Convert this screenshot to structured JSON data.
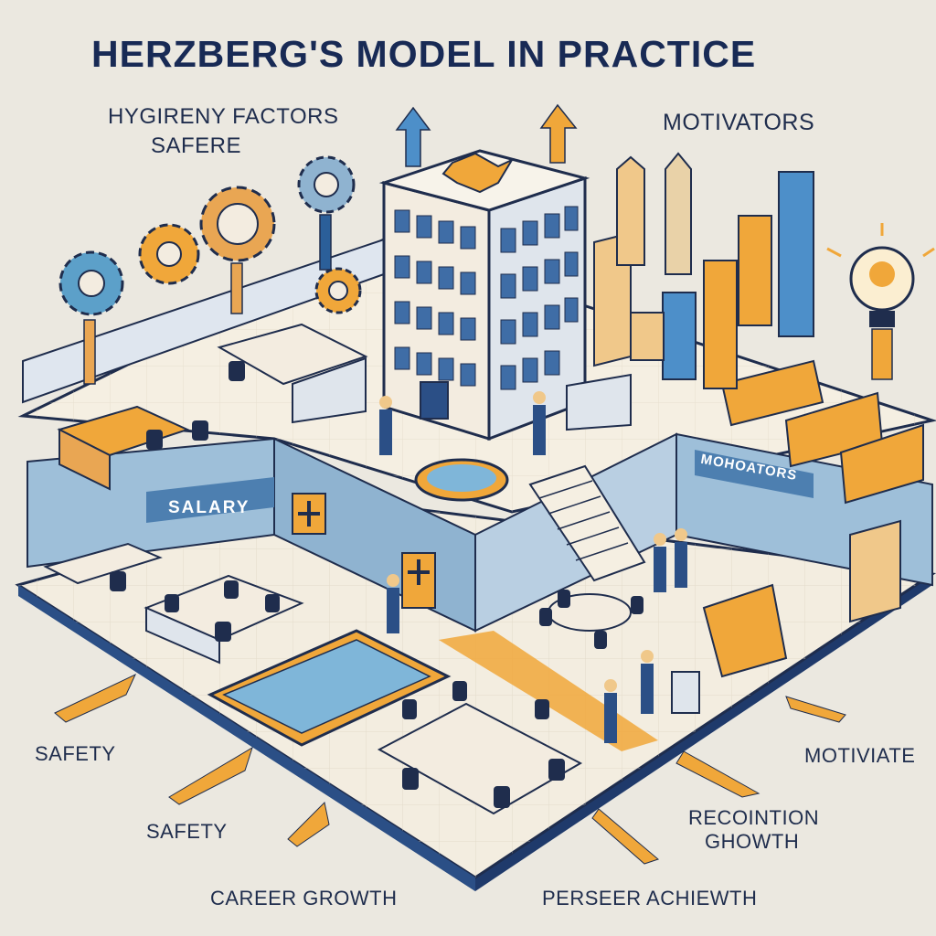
{
  "title": "HERZBERG'S MODEL IN PRACTICE",
  "labels": {
    "hygiene_factors": "HYGIRENY FACTORS",
    "safer": "SAFERE",
    "motivators": "MOTIVATORS",
    "safety_left": "SAFETY",
    "safety_bottom": "SAFETY",
    "career_growth": "CAREER GROWTH",
    "perseer": "PERSEER ACHIEWTH",
    "recognition": "RECOINTION",
    "growth": "GHOWTH",
    "motivate": "MOTIVIATE",
    "salary_wall": "SALARY",
    "motivators_wall": "MOHOATORS"
  },
  "colors": {
    "background": "#ebe8e0",
    "navy": "#1f2d4d",
    "blue_wall": "#9ebfd9",
    "orange": "#f0a73a",
    "floor": "#f3ede0",
    "water": "#7fb6d9"
  },
  "icons": [
    "gear-icon",
    "lightbulb-icon",
    "up-arrow-icon",
    "medical-cross-icon",
    "pointer-arrow-icon"
  ]
}
